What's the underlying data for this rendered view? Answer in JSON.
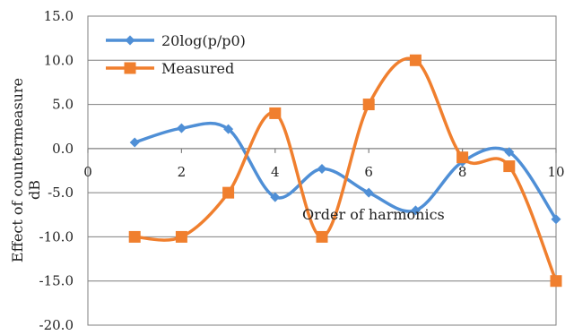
{
  "chart_data": {
    "type": "line",
    "smooth": true,
    "xlabel": "Order of harmonics",
    "ylabel": [
      "Effect of countermeasure",
      "dB"
    ],
    "xlim": [
      0,
      10
    ],
    "ylim": [
      -20,
      15
    ],
    "x_ticks": [
      0,
      2,
      4,
      6,
      8,
      10
    ],
    "y_ticks": [
      15,
      10,
      5,
      0,
      -5,
      -10,
      -15,
      -20
    ],
    "x_tick_labels": [
      "0",
      "2",
      "4",
      "6",
      "8",
      "10"
    ],
    "y_tick_labels": [
      "15.0",
      "10.0",
      "5.0",
      "0.0",
      "-5.0",
      "-10.0",
      "-15.0",
      "-20.0"
    ],
    "grid": "horizontal",
    "legend_position": "top-left",
    "series": [
      {
        "name": "20log(p/p0)",
        "color": "#4f8fd6",
        "marker": "diamond",
        "x": [
          1,
          2,
          3,
          4,
          5,
          6,
          7,
          8,
          9,
          10
        ],
        "y": [
          0.7,
          2.3,
          2.2,
          -5.5,
          -2.3,
          -5.0,
          -7.0,
          -1.5,
          -0.4,
          -8.0
        ]
      },
      {
        "name": "Measured",
        "color": "#f07f2e",
        "marker": "square",
        "x": [
          1,
          2,
          3,
          4,
          5,
          6,
          7,
          8,
          9,
          10
        ],
        "y": [
          -10,
          -10,
          -5,
          4,
          -10,
          5,
          10,
          -1,
          -2,
          -15
        ]
      }
    ]
  }
}
